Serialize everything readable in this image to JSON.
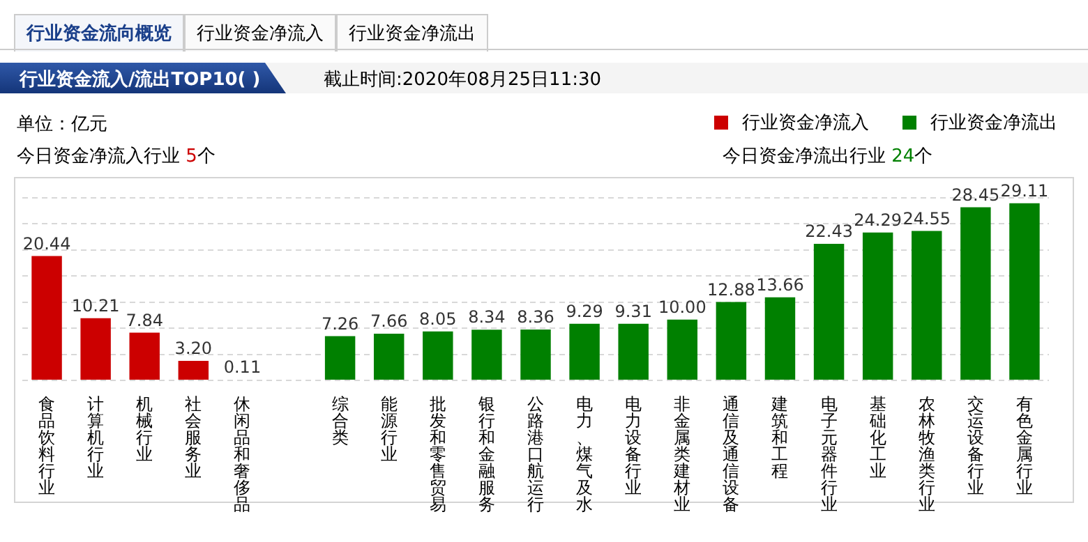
{
  "chart_data": {
    "type": "bar",
    "title": "行业资金流入/流出TOP10( )",
    "subtitle": "截止时间:2020年08月25日11:30",
    "ylabel": "单位：亿元",
    "annotations": [
      "行业资金流向概览",
      "行业资金净流入",
      "行业资金净流出",
      "今日资金净流入行业 5个",
      "今日资金净流出行业 24个"
    ],
    "categories": [
      "食品饮料行业",
      "计算机行业",
      "机械行业",
      "社会服务业",
      "休闲品和奢侈品",
      null,
      "综合类",
      "能源行业",
      "批发和零售贸易",
      "银行和金融服务",
      "公路港口航运行",
      "电力、煤气及水",
      "电力设备行业",
      "非金属类建材业",
      "通信及通信设备",
      "建筑和工程",
      "电子元器件行业",
      "基础化工业",
      "农林牧渔类行业",
      "交运设备行业",
      "有色金属行业"
    ],
    "series": [
      {
        "name": "行业资金净流入",
        "color": "#cc0000",
        "values": [
          20.44,
          10.21,
          7.84,
          3.2,
          0.11,
          null,
          null,
          null,
          null,
          null,
          null,
          null,
          null,
          null,
          null,
          null,
          null,
          null,
          null,
          null,
          null
        ],
        "value_labels": [
          "20.44",
          "10.21",
          "7.84",
          "3.20",
          "0.11",
          null,
          null,
          null,
          null,
          null,
          null,
          null,
          null,
          null,
          null,
          null,
          null,
          null,
          null,
          null,
          null
        ]
      },
      {
        "name": "行业资金净流出",
        "color": "#008000",
        "values": [
          null,
          null,
          null,
          null,
          null,
          null,
          7.26,
          7.66,
          8.05,
          8.34,
          8.36,
          9.29,
          9.31,
          10.0,
          12.88,
          13.66,
          22.43,
          24.29,
          24.55,
          28.45,
          29.11
        ],
        "value_labels": [
          null,
          null,
          null,
          null,
          null,
          null,
          "7.26",
          "7.66",
          "8.05",
          "8.34",
          "8.36",
          "9.29",
          "9.31",
          "10.00",
          "12.88",
          "13.66",
          "22.43",
          "24.29",
          "24.55",
          "28.45",
          "29.11"
        ]
      }
    ],
    "grid": "y",
    "legend": "top right",
    "tick_labels": "x"
  }
}
